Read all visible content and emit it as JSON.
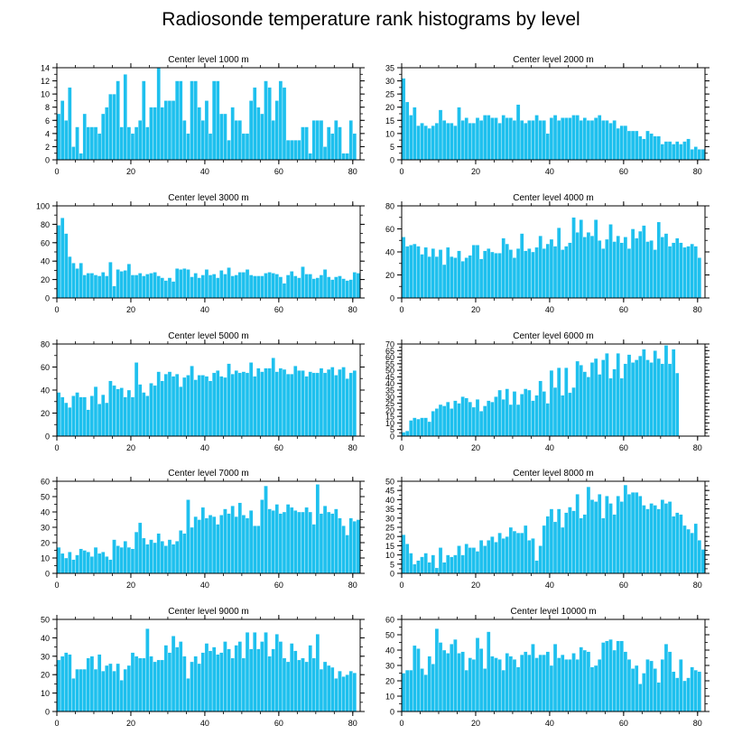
{
  "figure": {
    "title": "Radiosonde temperature rank histograms by level",
    "bar_color": "#1ec0ee",
    "bar_edge_color": "#ffffff",
    "axis_color": "#000000"
  },
  "chart_data": [
    {
      "type": "bar",
      "title": "Center level 1000 m",
      "xlim": [
        0,
        82
      ],
      "ylim": [
        0,
        14
      ],
      "xticks": [
        0,
        20,
        40,
        60,
        80
      ],
      "yticks": [
        0,
        2,
        4,
        6,
        8,
        10,
        12,
        14
      ],
      "values": [
        7,
        9,
        6,
        11,
        2,
        5,
        1,
        7,
        5,
        5,
        5,
        4,
        7,
        8,
        10,
        10,
        12,
        5,
        13,
        5,
        4,
        5,
        6,
        12,
        5,
        8,
        8,
        14,
        8,
        9,
        9,
        9,
        12,
        12,
        6,
        4,
        12,
        12,
        8,
        6,
        9,
        4,
        12,
        12,
        7,
        7,
        3,
        8,
        6,
        6,
        4,
        4,
        9,
        11,
        8,
        7,
        12,
        11,
        6,
        9,
        12,
        11,
        3,
        3,
        3,
        3,
        5,
        5,
        1,
        6,
        6,
        6,
        2,
        5,
        4,
        6,
        5,
        1,
        1,
        6,
        4
      ]
    },
    {
      "type": "bar",
      "title": "Center level 2000 m",
      "xlim": [
        0,
        82
      ],
      "ylim": [
        0,
        35
      ],
      "xticks": [
        0,
        20,
        40,
        60,
        80
      ],
      "yticks": [
        0,
        5,
        10,
        15,
        20,
        25,
        30,
        35
      ],
      "values": [
        31,
        22,
        17,
        20,
        13,
        14,
        13,
        12,
        13,
        14,
        19,
        15,
        14,
        14,
        13,
        20,
        15,
        16,
        14,
        14,
        16,
        15,
        17,
        17,
        16,
        16,
        14,
        17,
        16,
        16,
        15,
        21,
        15,
        14,
        15,
        15,
        17,
        15,
        15,
        10,
        16,
        17,
        15,
        16,
        16,
        16,
        17,
        17,
        15,
        16,
        15,
        15,
        16,
        17,
        15,
        15,
        14,
        15,
        12,
        13,
        13,
        11,
        11,
        11,
        9,
        8,
        11,
        10,
        9,
        9,
        6,
        7,
        7,
        6,
        7,
        6,
        7,
        8,
        4,
        5,
        4,
        4
      ]
    },
    {
      "type": "bar",
      "title": "Center level 3000 m",
      "xlim": [
        0,
        82
      ],
      "ylim": [
        0,
        100
      ],
      "xticks": [
        0,
        20,
        40,
        60,
        80
      ],
      "yticks": [
        0,
        20,
        40,
        60,
        80,
        100
      ],
      "values": [
        79,
        87,
        70,
        45,
        38,
        32,
        38,
        25,
        27,
        27,
        25,
        24,
        28,
        24,
        39,
        13,
        31,
        29,
        30,
        37,
        25,
        25,
        27,
        24,
        26,
        27,
        28,
        24,
        22,
        19,
        22,
        18,
        32,
        31,
        32,
        31,
        23,
        27,
        22,
        25,
        31,
        25,
        26,
        22,
        30,
        26,
        33,
        24,
        25,
        28,
        28,
        31,
        25,
        24,
        24,
        24,
        27,
        28,
        27,
        26,
        23,
        16,
        25,
        29,
        24,
        22,
        34,
        26,
        26,
        21,
        22,
        25,
        31,
        23,
        20,
        23,
        24,
        21,
        19,
        20,
        28,
        27
      ]
    },
    {
      "type": "bar",
      "title": "Center level 4000 m",
      "xlim": [
        0,
        82
      ],
      "ylim": [
        0,
        80
      ],
      "xticks": [
        0,
        20,
        40,
        60,
        80
      ],
      "yticks": [
        0,
        20,
        40,
        60,
        80
      ],
      "values": [
        53,
        45,
        46,
        47,
        45,
        38,
        44,
        36,
        43,
        36,
        42,
        29,
        44,
        36,
        35,
        41,
        32,
        35,
        37,
        46,
        46,
        34,
        41,
        43,
        40,
        39,
        39,
        52,
        47,
        42,
        35,
        43,
        56,
        41,
        43,
        40,
        44,
        54,
        43,
        47,
        51,
        45,
        61,
        42,
        45,
        48,
        70,
        57,
        68,
        53,
        57,
        54,
        68,
        50,
        43,
        51,
        64,
        49,
        54,
        48,
        53,
        43,
        60,
        52,
        58,
        63,
        49,
        50,
        42,
        66,
        53,
        56,
        45,
        48,
        52,
        48,
        44,
        45,
        47,
        45,
        35
      ]
    },
    {
      "type": "bar",
      "title": "Center level 5000 m",
      "xlim": [
        0,
        82
      ],
      "ylim": [
        0,
        80
      ],
      "xticks": [
        0,
        20,
        40,
        60,
        80
      ],
      "yticks": [
        0,
        20,
        40,
        60,
        80
      ],
      "values": [
        38,
        34,
        29,
        25,
        35,
        38,
        34,
        34,
        23,
        35,
        43,
        28,
        36,
        29,
        48,
        44,
        41,
        42,
        34,
        40,
        34,
        64,
        45,
        38,
        35,
        46,
        44,
        56,
        48,
        54,
        56,
        52,
        54,
        43,
        51,
        53,
        61,
        49,
        53,
        53,
        52,
        48,
        55,
        57,
        52,
        51,
        63,
        54,
        57,
        55,
        56,
        55,
        64,
        52,
        59,
        56,
        59,
        59,
        68,
        56,
        59,
        58,
        54,
        54,
        61,
        57,
        57,
        52,
        56,
        55,
        55,
        59,
        55,
        58,
        60,
        53,
        58,
        60,
        50,
        55,
        57
      ]
    },
    {
      "type": "bar",
      "title": "Center level 6000 m",
      "xlim": [
        0,
        82
      ],
      "ylim": [
        0,
        70
      ],
      "xticks": [
        0,
        20,
        40,
        60,
        80
      ],
      "yticks": [
        0,
        5,
        10,
        15,
        20,
        25,
        30,
        35,
        40,
        45,
        50,
        55,
        60,
        65,
        70
      ],
      "values": [
        3,
        4,
        12,
        14,
        13,
        14,
        14,
        11,
        19,
        21,
        24,
        23,
        26,
        21,
        27,
        25,
        30,
        29,
        26,
        22,
        28,
        19,
        23,
        27,
        26,
        30,
        35,
        28,
        36,
        24,
        34,
        24,
        32,
        36,
        35,
        27,
        31,
        42,
        34,
        25,
        50,
        37,
        52,
        31,
        52,
        33,
        37,
        57,
        54,
        49,
        45,
        56,
        59,
        47,
        58,
        63,
        44,
        51,
        63,
        44,
        55,
        62,
        56,
        58,
        61,
        66,
        58,
        56,
        65,
        59,
        55,
        69,
        55,
        66,
        48
      ]
    },
    {
      "type": "bar",
      "title": "Center level 7000 m",
      "xlim": [
        0,
        82
      ],
      "ylim": [
        0,
        60
      ],
      "xticks": [
        0,
        20,
        40,
        60,
        80
      ],
      "yticks": [
        0,
        10,
        20,
        30,
        40,
        50,
        60
      ],
      "values": [
        17,
        13,
        10,
        14,
        9,
        12,
        16,
        15,
        14,
        11,
        17,
        13,
        14,
        11,
        9,
        22,
        18,
        17,
        21,
        17,
        16,
        27,
        33,
        23,
        19,
        22,
        20,
        26,
        21,
        18,
        22,
        19,
        21,
        28,
        26,
        48,
        30,
        37,
        35,
        43,
        36,
        38,
        37,
        32,
        38,
        42,
        39,
        44,
        37,
        46,
        38,
        36,
        41,
        31,
        31,
        48,
        57,
        42,
        41,
        45,
        39,
        40,
        45,
        43,
        41,
        40,
        40,
        43,
        40,
        32,
        58,
        39,
        44,
        40,
        39,
        42,
        36,
        31,
        25,
        36,
        34,
        35
      ]
    },
    {
      "type": "bar",
      "title": "Center level 8000 m",
      "xlim": [
        0,
        82
      ],
      "ylim": [
        0,
        50
      ],
      "xticks": [
        0,
        20,
        40,
        60,
        80
      ],
      "yticks": [
        0,
        5,
        10,
        15,
        20,
        25,
        30,
        35,
        40,
        45,
        50
      ],
      "values": [
        21,
        16,
        11,
        5,
        7,
        9,
        11,
        6,
        10,
        3,
        14,
        6,
        10,
        9,
        10,
        15,
        10,
        16,
        14,
        14,
        12,
        18,
        15,
        18,
        20,
        17,
        22,
        19,
        20,
        25,
        23,
        22,
        22,
        26,
        18,
        19,
        7,
        15,
        26,
        31,
        35,
        28,
        35,
        25,
        33,
        36,
        34,
        43,
        30,
        32,
        47,
        40,
        39,
        43,
        30,
        42,
        38,
        32,
        42,
        39,
        48,
        43,
        44,
        44,
        42,
        37,
        35,
        38,
        37,
        35,
        40,
        38,
        39,
        31,
        33,
        32,
        26,
        24,
        22,
        27,
        18,
        13
      ]
    },
    {
      "type": "bar",
      "title": "Center level 9000 m",
      "xlim": [
        0,
        82
      ],
      "ylim": [
        0,
        50
      ],
      "xticks": [
        0,
        20,
        40,
        60,
        80
      ],
      "yticks": [
        0,
        10,
        20,
        30,
        40,
        50
      ],
      "values": [
        28,
        30,
        32,
        31,
        18,
        23,
        23,
        23,
        29,
        30,
        23,
        31,
        22,
        25,
        26,
        22,
        26,
        17,
        23,
        25,
        32,
        30,
        29,
        29,
        45,
        30,
        27,
        28,
        28,
        36,
        32,
        41,
        35,
        38,
        30,
        18,
        27,
        30,
        26,
        32,
        37,
        33,
        35,
        31,
        32,
        38,
        34,
        29,
        36,
        38,
        29,
        43,
        34,
        43,
        34,
        38,
        43,
        30,
        34,
        42,
        38,
        29,
        27,
        37,
        33,
        28,
        29,
        27,
        36,
        29,
        42,
        23,
        27,
        25,
        24,
        18,
        22,
        19,
        20,
        22,
        21
      ]
    },
    {
      "type": "bar",
      "title": "Center level 10000 m",
      "xlim": [
        0,
        82
      ],
      "ylim": [
        0,
        60
      ],
      "xticks": [
        0,
        20,
        40,
        60,
        80
      ],
      "yticks": [
        0,
        10,
        20,
        30,
        40,
        50,
        60
      ],
      "values": [
        25,
        27,
        27,
        43,
        41,
        28,
        24,
        36,
        31,
        54,
        45,
        40,
        38,
        44,
        47,
        38,
        39,
        27,
        35,
        34,
        48,
        41,
        28,
        52,
        36,
        35,
        34,
        27,
        38,
        36,
        34,
        29,
        37,
        39,
        37,
        44,
        35,
        37,
        37,
        39,
        30,
        44,
        35,
        37,
        34,
        34,
        38,
        34,
        42,
        40,
        39,
        29,
        30,
        34,
        45,
        46,
        47,
        40,
        46,
        46,
        39,
        34,
        28,
        30,
        18,
        25,
        34,
        33,
        28,
        19,
        34,
        44,
        39,
        26,
        22,
        34,
        20,
        22,
        29,
        27,
        26
      ]
    }
  ]
}
